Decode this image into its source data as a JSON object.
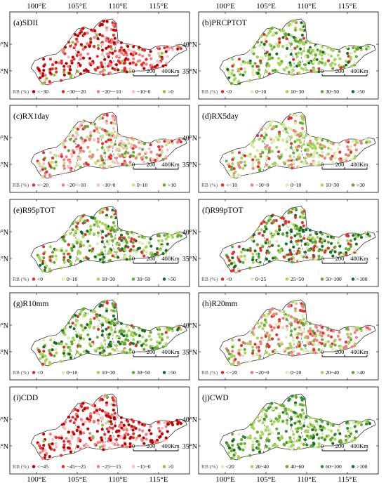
{
  "axes": {
    "top_ticks": [
      "100°E",
      "105°E",
      "110°E",
      "115°E"
    ],
    "bottom_ticks": [
      "100°E",
      "105°E",
      "110°E",
      "115°E"
    ],
    "lat_ticks": [
      "40°N",
      "35°N"
    ]
  },
  "scale_bar": {
    "labels": [
      "0",
      "200",
      "400Km"
    ]
  },
  "legend_label": "RB (%)",
  "panels": [
    {
      "title": "(a)SDII",
      "legend": [
        {
          "label": "<−30",
          "color": "#c00000"
        },
        {
          "label": "−30~−20",
          "color": "#e03030"
        },
        {
          "label": "−20~−10",
          "color": "#f08080"
        },
        {
          "label": "−10~0",
          "color": "#f8c0c0"
        },
        {
          "label": ">0",
          "color": "#8cc63f"
        }
      ],
      "mix": [
        0.28,
        0.3,
        0.22,
        0.12,
        0.08
      ]
    },
    {
      "title": "(b)PRCPTOT",
      "legend": [
        {
          "label": "<0",
          "color": "#e03030"
        },
        {
          "label": "0~10",
          "color": "#dcecb0"
        },
        {
          "label": "10~30",
          "color": "#a8d45a"
        },
        {
          "label": "30~50",
          "color": "#66aa33"
        },
        {
          "label": ">50",
          "color": "#1a6b2a"
        }
      ],
      "mix": [
        0.06,
        0.2,
        0.36,
        0.24,
        0.14
      ]
    },
    {
      "title": "(c)RX1day",
      "legend": [
        {
          "label": "<−20",
          "color": "#e03030"
        },
        {
          "label": "−20~−10",
          "color": "#f08080"
        },
        {
          "label": "−10~0",
          "color": "#f8c0c0"
        },
        {
          "label": "0~10",
          "color": "#c8e28a"
        },
        {
          "label": ">10",
          "color": "#66aa33"
        }
      ],
      "mix": [
        0.18,
        0.22,
        0.22,
        0.24,
        0.14
      ]
    },
    {
      "title": "(d)RX5day",
      "legend": [
        {
          "label": "<−10",
          "color": "#e03030"
        },
        {
          "label": "−10~0",
          "color": "#f08080"
        },
        {
          "label": "0~10",
          "color": "#dcecb0"
        },
        {
          "label": "10~30",
          "color": "#a8d45a"
        },
        {
          "label": ">30",
          "color": "#66aa33"
        }
      ],
      "mix": [
        0.08,
        0.2,
        0.3,
        0.3,
        0.12
      ]
    },
    {
      "title": "(e)R95pTOT",
      "legend": [
        {
          "label": "<0",
          "color": "#e03030"
        },
        {
          "label": "0~10",
          "color": "#dcecb0"
        },
        {
          "label": "10~30",
          "color": "#a8d45a"
        },
        {
          "label": "30~50",
          "color": "#66aa33"
        },
        {
          "label": ">50",
          "color": "#1a6b2a"
        }
      ],
      "mix": [
        0.14,
        0.14,
        0.3,
        0.24,
        0.18
      ]
    },
    {
      "title": "(f)R99pTOT",
      "legend": [
        {
          "label": "<0",
          "color": "#e03030"
        },
        {
          "label": "0~25",
          "color": "#dcecb0"
        },
        {
          "label": "25~50",
          "color": "#a8d45a"
        },
        {
          "label": "50~100",
          "color": "#66aa33"
        },
        {
          "label": ">100",
          "color": "#1a6b2a"
        }
      ],
      "mix": [
        0.28,
        0.08,
        0.14,
        0.2,
        0.3
      ]
    },
    {
      "title": "(g)R10mm",
      "legend": [
        {
          "label": "<0",
          "color": "#e03030"
        },
        {
          "label": "0~10",
          "color": "#dcecb0"
        },
        {
          "label": "10~30",
          "color": "#a8d45a"
        },
        {
          "label": "30~50",
          "color": "#66aa33"
        },
        {
          "label": ">50",
          "color": "#1a6b2a"
        }
      ],
      "mix": [
        0.08,
        0.18,
        0.36,
        0.24,
        0.14
      ]
    },
    {
      "title": "(h)R20mm",
      "legend": [
        {
          "label": "<−20",
          "color": "#e03030"
        },
        {
          "label": "−20~0",
          "color": "#f08080"
        },
        {
          "label": "0~20",
          "color": "#dcecb0"
        },
        {
          "label": "20~40",
          "color": "#a8d45a"
        },
        {
          "label": ">40",
          "color": "#66aa33"
        }
      ],
      "mix": [
        0.14,
        0.26,
        0.22,
        0.26,
        0.12
      ]
    },
    {
      "title": "(i)CDD",
      "legend": [
        {
          "label": "<−45",
          "color": "#c00000"
        },
        {
          "label": "−45~−25",
          "color": "#e03030"
        },
        {
          "label": "−25~−15",
          "color": "#f08080"
        },
        {
          "label": "−15~0",
          "color": "#f8c0c0"
        },
        {
          "label": ">0",
          "color": "#8cc63f"
        }
      ],
      "mix": [
        0.36,
        0.2,
        0.2,
        0.2,
        0.04
      ]
    },
    {
      "title": "(j)CWD",
      "legend": [
        {
          "label": "<20",
          "color": "#dcecb0"
        },
        {
          "label": "20~40",
          "color": "#a8d45a"
        },
        {
          "label": "40~60",
          "color": "#66aa33"
        },
        {
          "label": "60~100",
          "color": "#2d8a3a"
        },
        {
          "label": ">100",
          "color": "#1a6b2a"
        }
      ],
      "mix": [
        0.16,
        0.3,
        0.3,
        0.16,
        0.08
      ]
    }
  ]
}
